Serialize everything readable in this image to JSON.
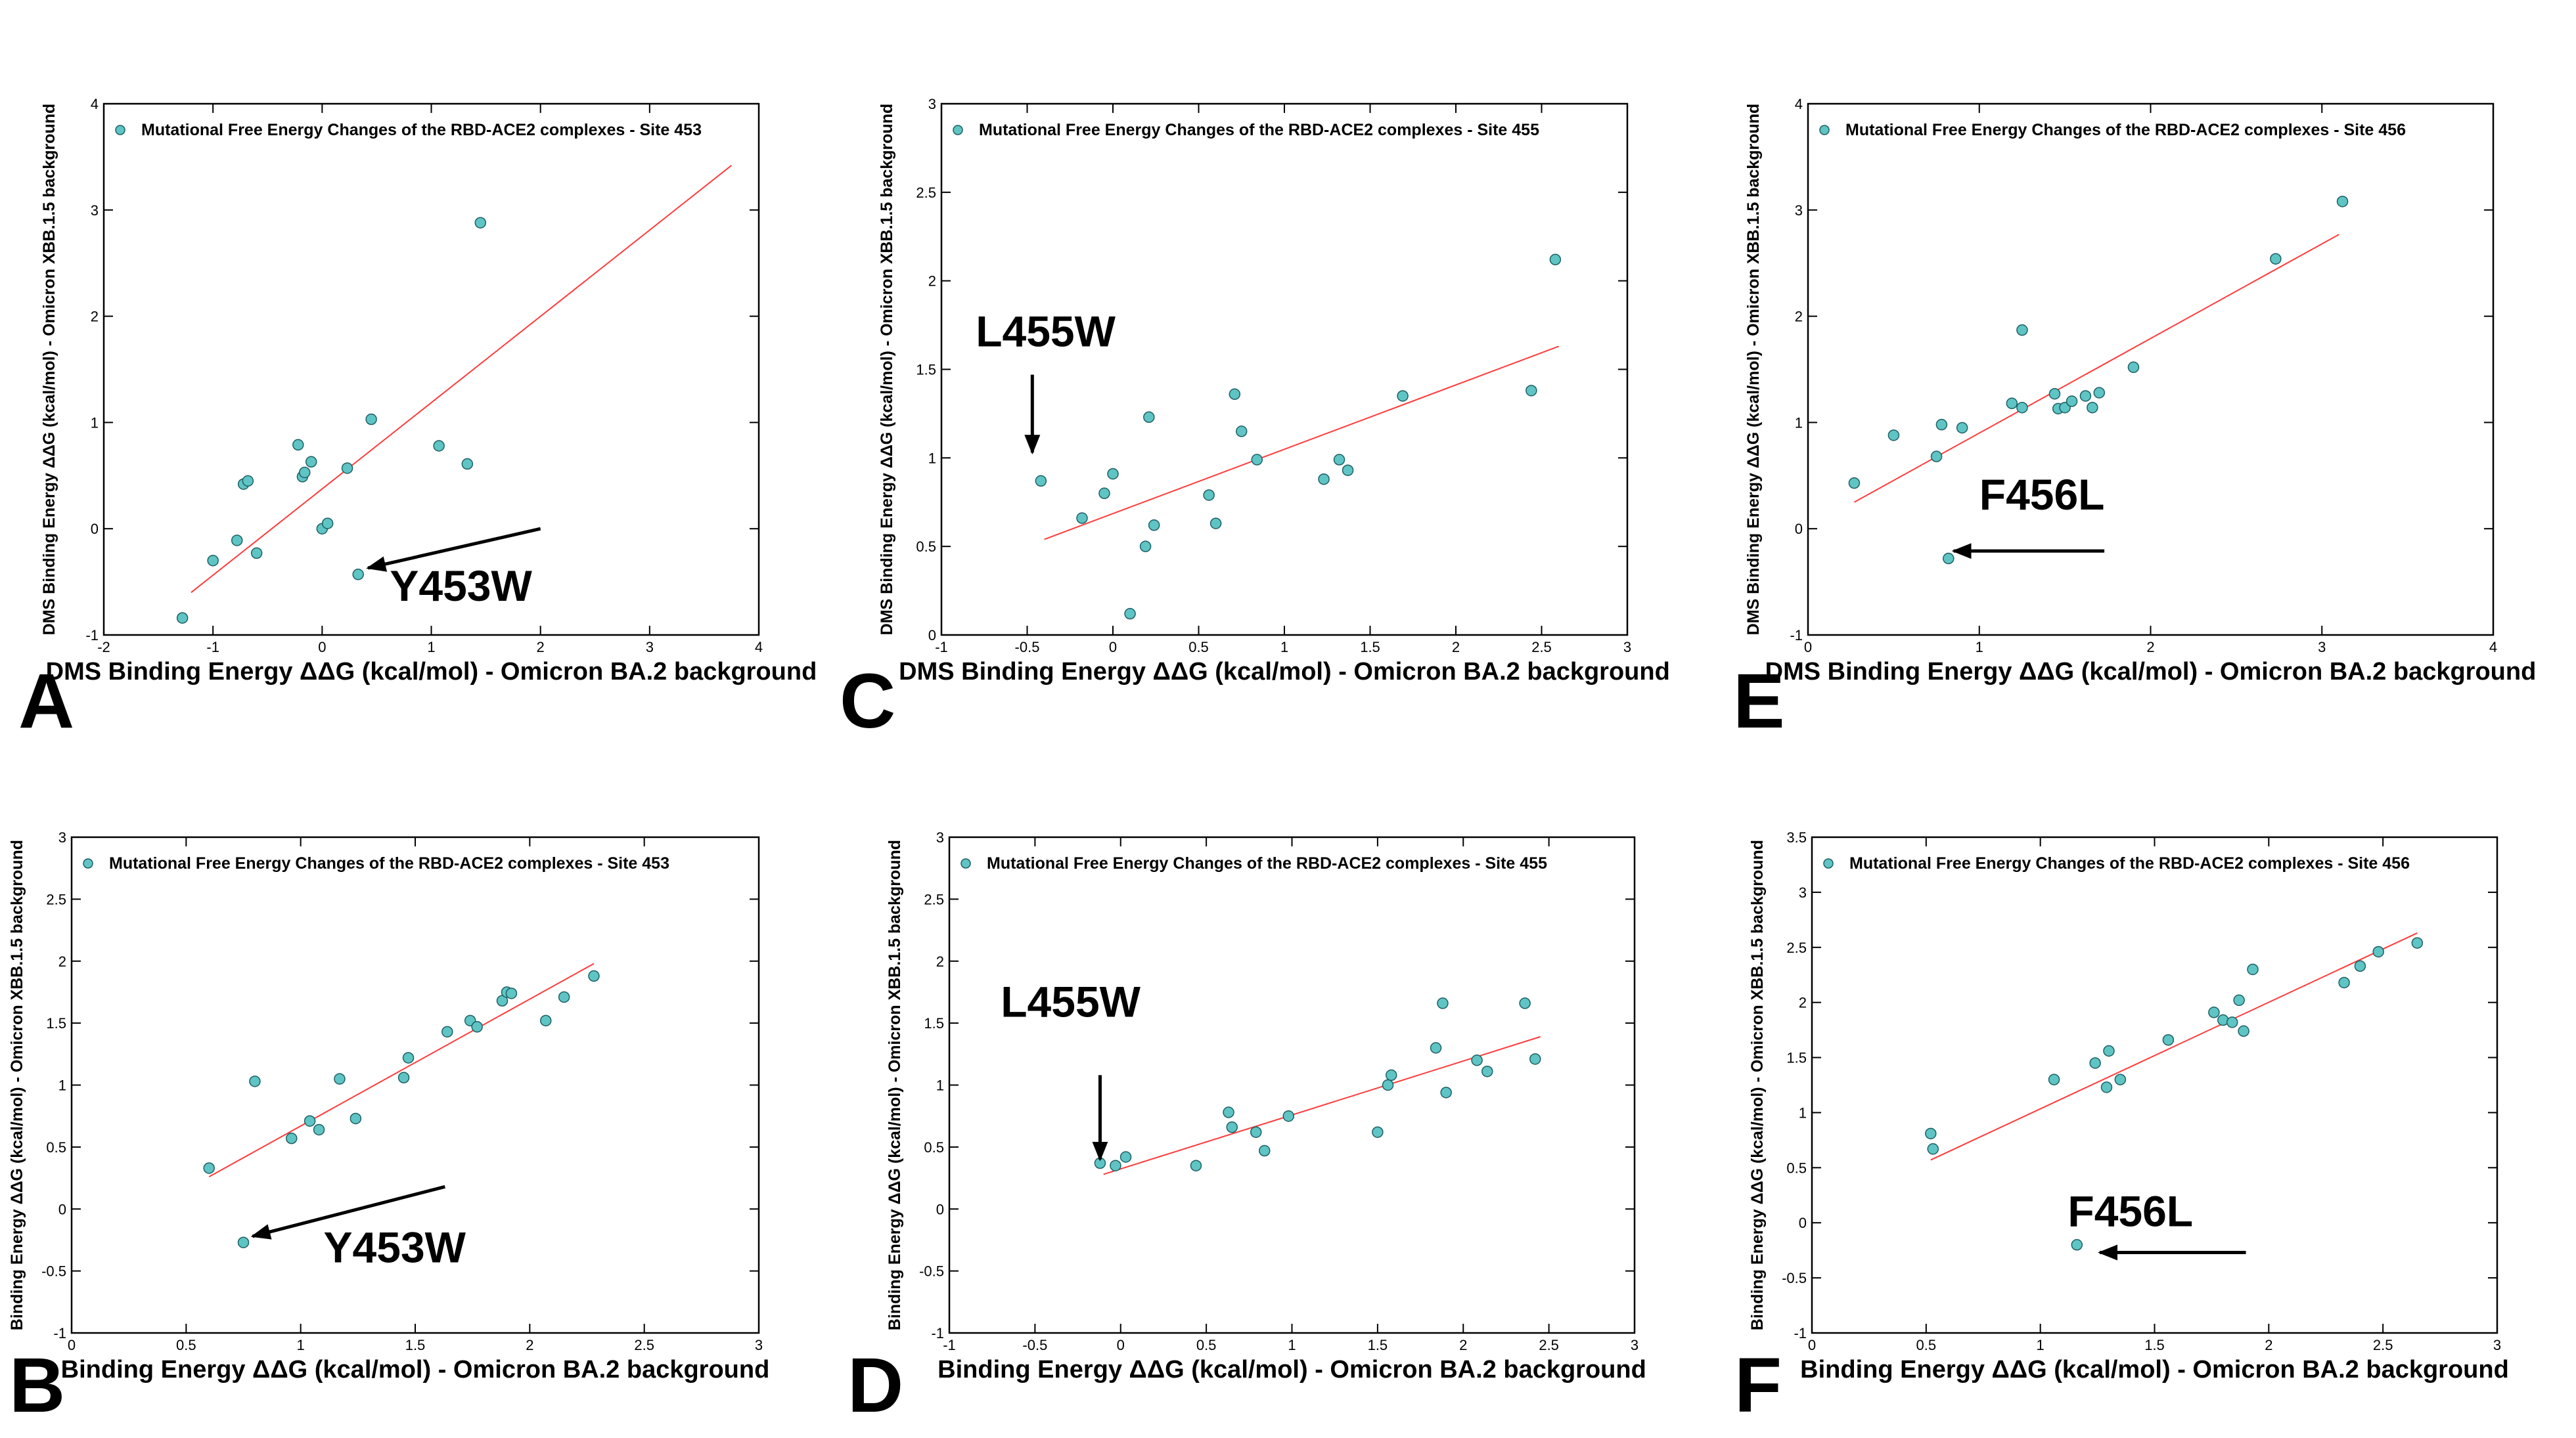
{
  "colors": {
    "point": "#5fc4c4",
    "point_stroke": "#1d5f63",
    "fit": "#ff3b3b",
    "arrow": "#000000"
  },
  "chart_data": [
    {
      "panel": "A",
      "type": "scatter",
      "legend": "Mutational Free Energy Changes of the RBD-ACE2 complexes - Site 453",
      "xlabel": "DMS Binding Energy ΔΔG (kcal/mol) -  Omicron BA.2 background",
      "ylabel": "DMS Binding Energy ΔΔG (kcal/mol) - Omicron XBB.1.5 background",
      "xlim": [
        -2,
        4
      ],
      "ylim": [
        -1,
        4
      ],
      "xticks": [
        -2,
        -1,
        0,
        1,
        2,
        3,
        4
      ],
      "xtick_labels": [
        "-2",
        "-1",
        "0",
        "1",
        "2",
        "3",
        "4"
      ],
      "yticks": [
        -1,
        0,
        1,
        2,
        3,
        4
      ],
      "ytick_labels": [
        "-1",
        "0",
        "1",
        "2",
        "3",
        "4"
      ],
      "x": [
        -1.28,
        -1.0,
        -0.78,
        -0.72,
        -0.68,
        -0.6,
        -0.22,
        -0.18,
        -0.16,
        -0.1,
        0.0,
        0.05,
        0.23,
        0.33,
        0.45,
        1.07,
        1.33,
        1.45
      ],
      "y": [
        -0.84,
        -0.3,
        -0.11,
        0.42,
        0.45,
        -0.23,
        0.79,
        0.49,
        0.53,
        0.63,
        0.0,
        0.05,
        0.57,
        -0.43,
        1.03,
        0.78,
        0.61,
        2.88
      ],
      "fit": {
        "x": [
          -1.2,
          3.75
        ],
        "y": [
          -0.6,
          3.42
        ]
      },
      "annotation": {
        "text": "Y453W",
        "tx": 0.62,
        "ty": -0.68,
        "ax": 2.0,
        "ay": 0.0,
        "hx": 0.42,
        "hy": -0.37
      }
    },
    {
      "panel": "B",
      "type": "scatter",
      "legend": "Mutational Free Energy Changes of the RBD-ACE2 complexes - Site 453",
      "xlabel": "Binding Energy ΔΔG (kcal/mol) -  Omicron BA.2 background",
      "ylabel": "Binding Energy ΔΔG (kcal/mol) - Omicron XBB.1.5 background",
      "xlim": [
        0,
        3
      ],
      "ylim": [
        -1,
        3
      ],
      "xticks": [
        0,
        0.5,
        1,
        1.5,
        2,
        2.5,
        3
      ],
      "xtick_labels": [
        "0",
        "0.5",
        "1",
        "1.5",
        "2",
        "2.5",
        "3"
      ],
      "yticks": [
        -1,
        -0.5,
        0,
        0.5,
        1,
        1.5,
        2,
        2.5,
        3
      ],
      "ytick_labels": [
        "-1",
        "-0.5",
        "0",
        "0.5",
        "1",
        "1.5",
        "2",
        "2.5",
        "3"
      ],
      "x": [
        0.6,
        0.75,
        0.8,
        0.96,
        1.04,
        1.08,
        1.17,
        1.24,
        1.45,
        1.47,
        1.64,
        1.74,
        1.77,
        1.88,
        1.9,
        1.92,
        2.07,
        2.15,
        2.28
      ],
      "y": [
        0.33,
        -0.27,
        1.03,
        0.57,
        0.71,
        0.64,
        1.05,
        0.73,
        1.06,
        1.22,
        1.43,
        1.52,
        1.47,
        1.68,
        1.75,
        1.74,
        1.52,
        1.71,
        1.88
      ],
      "fit": {
        "x": [
          0.6,
          2.28
        ],
        "y": [
          0.26,
          1.98
        ]
      },
      "annotation": {
        "text": "Y453W",
        "tx": 1.1,
        "ty": -0.43,
        "ax": 1.63,
        "ay": 0.18,
        "hx": 0.79,
        "hy": -0.22
      }
    },
    {
      "panel": "C",
      "type": "scatter",
      "legend": "Mutational Free Energy Changes of the RBD-ACE2 complexes - Site 455",
      "xlabel": "DMS Binding Energy ΔΔG (kcal/mol) -  Omicron BA.2 background",
      "ylabel": "DMS Binding Energy ΔΔG (kcal/mol) - Omicron XBB.1.5 background",
      "xlim": [
        -1,
        3
      ],
      "ylim": [
        0,
        3
      ],
      "xticks": [
        -1,
        -0.5,
        0,
        0.5,
        1,
        1.5,
        2,
        2.5,
        3
      ],
      "xtick_labels": [
        "-1",
        "-0.5",
        "0",
        "0.5",
        "1",
        "1.5",
        "2",
        "2.5",
        "3"
      ],
      "yticks": [
        0,
        0.5,
        1,
        1.5,
        2,
        2.5,
        3
      ],
      "ytick_labels": [
        "0",
        "0.5",
        "1",
        "1.5",
        "2",
        "2.5",
        "3"
      ],
      "x": [
        -0.42,
        -0.18,
        -0.05,
        0.0,
        0.1,
        0.19,
        0.21,
        0.24,
        0.56,
        0.6,
        0.71,
        0.75,
        0.84,
        1.23,
        1.32,
        1.37,
        1.69,
        2.44,
        2.58
      ],
      "y": [
        0.87,
        0.66,
        0.8,
        0.91,
        0.12,
        0.5,
        1.23,
        0.62,
        0.79,
        0.63,
        1.36,
        1.15,
        0.99,
        0.88,
        0.99,
        0.93,
        1.35,
        1.38,
        2.12
      ],
      "fit": {
        "x": [
          -0.4,
          2.6
        ],
        "y": [
          0.54,
          1.63
        ]
      },
      "annotation": {
        "text": "L455W",
        "tx": -0.8,
        "ty": 1.63,
        "ax": -0.47,
        "ay": 1.47,
        "hx": -0.47,
        "hy": 1.03
      }
    },
    {
      "panel": "D",
      "type": "scatter",
      "legend": "Mutational Free Energy Changes of the RBD-ACE2 complexes - Site 455",
      "xlabel": "Binding Energy       ΔΔG (kcal/mol) -  Omicron BA.2 background",
      "ylabel": "Binding Energy  ΔΔG (kcal/mol) - Omicron XBB.1.5 background",
      "xlim": [
        -1,
        3
      ],
      "ylim": [
        -1,
        3
      ],
      "xticks": [
        -1,
        -0.5,
        0,
        0.5,
        1,
        1.5,
        2,
        2.5,
        3
      ],
      "xtick_labels": [
        "-1",
        "-0.5",
        "0",
        "0.5",
        "1",
        "1.5",
        "2",
        "2.5",
        "3"
      ],
      "yticks": [
        -1,
        -0.5,
        0,
        0.5,
        1,
        1.5,
        2,
        2.5,
        3
      ],
      "ytick_labels": [
        "-1",
        "-0.5",
        "0",
        "0.5",
        "1",
        "1.5",
        "2",
        "2.5",
        "3"
      ],
      "x": [
        -0.12,
        -0.03,
        0.03,
        0.44,
        0.63,
        0.65,
        0.79,
        0.84,
        0.98,
        1.5,
        1.56,
        1.58,
        1.84,
        1.88,
        1.9,
        2.08,
        2.14,
        2.36,
        2.42
      ],
      "y": [
        0.37,
        0.35,
        0.42,
        0.35,
        0.78,
        0.66,
        0.62,
        0.47,
        0.75,
        0.62,
        1.0,
        1.08,
        1.3,
        1.66,
        0.94,
        1.2,
        1.11,
        1.66,
        1.21
      ],
      "fit": {
        "x": [
          -0.1,
          2.45
        ],
        "y": [
          0.28,
          1.39
        ]
      },
      "annotation": {
        "text": "L455W",
        "tx": -0.7,
        "ty": 1.55,
        "ax": -0.12,
        "ay": 1.08,
        "hx": -0.12,
        "hy": 0.4
      }
    },
    {
      "panel": "E",
      "type": "scatter",
      "legend": "Mutational Free Energy Changes of the RBD-ACE2 complexes - Site 456",
      "xlabel": "DMS Binding Energy ΔΔG (kcal/mol) -  Omicron BA.2 background",
      "ylabel": "DMS Binding Energy ΔΔG (kcal/mol) - Omicron XBB.1.5 background",
      "xlim": [
        0,
        4
      ],
      "ylim": [
        -1,
        4
      ],
      "xticks": [
        0,
        1,
        2,
        3,
        4
      ],
      "xtick_labels": [
        "0",
        "1",
        "2",
        "3",
        "4"
      ],
      "yticks": [
        -1,
        0,
        1,
        2,
        3,
        4
      ],
      "ytick_labels": [
        "-1",
        "0",
        "1",
        "2",
        "3",
        "4"
      ],
      "x": [
        0.27,
        0.5,
        0.75,
        0.78,
        0.82,
        0.9,
        1.19,
        1.25,
        1.25,
        1.44,
        1.46,
        1.5,
        1.54,
        1.62,
        1.66,
        1.7,
        1.9,
        2.73,
        3.12
      ],
      "y": [
        0.43,
        0.88,
        0.68,
        0.98,
        -0.28,
        0.95,
        1.18,
        1.87,
        1.14,
        1.27,
        1.13,
        1.14,
        1.2,
        1.25,
        1.14,
        1.28,
        1.52,
        2.54,
        3.08
      ],
      "fit": {
        "x": [
          0.27,
          3.1
        ],
        "y": [
          0.25,
          2.77
        ]
      },
      "annotation": {
        "text": "F456L",
        "tx": 1.0,
        "ty": 0.18,
        "ax": 1.73,
        "ay": -0.21,
        "hx": 0.85,
        "hy": -0.21
      }
    },
    {
      "panel": "F",
      "type": "scatter",
      "legend": "Mutational Free Energy Changes of the RBD-ACE2 complexes - Site 456",
      "xlabel": "Binding Energy ΔΔG (kcal/mol) -  Omicron BA.2 background",
      "ylabel": "Binding Energy ΔΔG (kcal/mol) - Omicron XBB.1.5 background",
      "xlim": [
        0,
        3
      ],
      "ylim": [
        -1,
        3.5
      ],
      "xticks": [
        0,
        0.5,
        1,
        1.5,
        2,
        2.5,
        3
      ],
      "xtick_labels": [
        "0",
        "0.5",
        "1",
        "1.5",
        "2",
        "2.5",
        "3"
      ],
      "yticks": [
        -1,
        -0.5,
        0,
        0.5,
        1,
        1.5,
        2,
        2.5,
        3,
        3.5
      ],
      "ytick_labels": [
        "-1",
        "-0.5",
        "0",
        "0.5",
        "1",
        "1.5",
        "2",
        "2.5",
        "3",
        "3.5"
      ],
      "x": [
        0.52,
        0.53,
        1.06,
        1.16,
        1.24,
        1.29,
        1.3,
        1.35,
        1.56,
        1.76,
        1.8,
        1.84,
        1.87,
        1.89,
        1.93,
        2.33,
        2.4,
        2.48,
        2.65
      ],
      "y": [
        0.81,
        0.67,
        1.3,
        -0.2,
        1.45,
        1.23,
        1.56,
        1.3,
        1.66,
        1.91,
        1.84,
        1.82,
        2.02,
        1.74,
        2.3,
        2.18,
        2.33,
        2.46,
        2.54
      ],
      "fit": {
        "x": [
          0.52,
          2.65
        ],
        "y": [
          0.57,
          2.63
        ]
      },
      "annotation": {
        "text": "F456L",
        "tx": 1.12,
        "ty": -0.03,
        "ax": 1.9,
        "ay": -0.27,
        "hx": 1.26,
        "hy": -0.27
      }
    }
  ]
}
